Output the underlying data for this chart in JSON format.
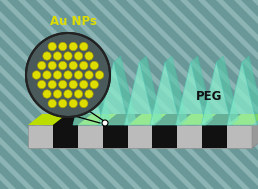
{
  "bg_color": "#6a9898",
  "stripe_light": "#82b0b0",
  "stripe_dark": "#5a8888",
  "figsize": [
    2.58,
    1.89
  ],
  "dpi": 100,
  "yellow": "#bbdd00",
  "black": "#111111",
  "fin_color": "#88eecc",
  "fin_alpha": 0.72,
  "fin_side_color": "#55ccaa",
  "fin_side_alpha": 0.6,
  "peg_label": "PEG",
  "au_label": "Au NPs",
  "au_label_color": "#dddd00",
  "circle_bg": "#4a5a5a",
  "circle_edge": "#222222",
  "dot_color": "#dddd00",
  "dot_edge": "#aa9900",
  "plat_gray": "#bbbbbb",
  "plat_side": "#999999",
  "plat_bottom": "#aaaaaa"
}
